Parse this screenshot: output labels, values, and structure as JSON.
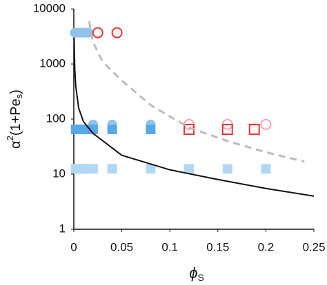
{
  "chart_data": {
    "type": "scatter",
    "xlabel": [
      "ϕ",
      "S"
    ],
    "ylabel": [
      "α",
      "2",
      "(1+Pe",
      "s",
      ")"
    ],
    "xlim": [
      0,
      0.25
    ],
    "xticks": [
      0,
      0.05,
      0.1,
      0.15,
      0.2,
      0.25
    ],
    "ylim": [
      1,
      10000
    ],
    "yticks": [
      1,
      10,
      100,
      1000,
      10000
    ],
    "ylog": true,
    "series": [
      {
        "marker": "circle",
        "filled": true,
        "color": "#8fc3ea",
        "x": [
          0.001,
          0.003,
          0.005,
          0.007,
          0.009,
          0.011,
          0.013,
          0.015
        ],
        "values": [
          3700,
          3700,
          3700,
          3700,
          3700,
          3700,
          3700,
          3700
        ]
      },
      {
        "marker": "circle",
        "filled": false,
        "color": "#e8312f",
        "x": [
          0.025,
          0.045
        ],
        "values": [
          3700,
          3700
        ]
      },
      {
        "marker": "circle",
        "filled": true,
        "color": "#8fc3ea",
        "x": [
          0.02,
          0.04,
          0.08
        ],
        "values": [
          80,
          80,
          80
        ]
      },
      {
        "marker": "circle",
        "filled": false,
        "color": "#f2a0c0",
        "x": [
          0.12,
          0.16,
          0.2
        ],
        "values": [
          80,
          80,
          80
        ]
      },
      {
        "marker": "square",
        "filled": true,
        "color": "#5aa7e8",
        "x": [
          0.002,
          0.005,
          0.008,
          0.011,
          0.02,
          0.04,
          0.08
        ],
        "values": [
          65,
          65,
          65,
          65,
          65,
          65,
          65
        ]
      },
      {
        "marker": "square",
        "filled": false,
        "color": "#e8312f",
        "x": [
          0.12,
          0.16,
          0.188
        ],
        "values": [
          65,
          65,
          65
        ]
      },
      {
        "marker": "square",
        "filled": true,
        "color": "#b0d8f5",
        "x": [
          0.002,
          0.005,
          0.008,
          0.011,
          0.02,
          0.04,
          0.08,
          0.12,
          0.16,
          0.2
        ],
        "values": [
          12.5,
          12.5,
          12.5,
          12.5,
          12.5,
          12.5,
          12.5,
          12.5,
          12.5,
          12.5
        ]
      },
      {
        "line": "solid",
        "color": "#111111",
        "x": [
          0.0003,
          0.001,
          0.002,
          0.005,
          0.01,
          0.02,
          0.05,
          0.1,
          0.15,
          0.2,
          0.25
        ],
        "values": [
          3000,
          800,
          400,
          160,
          90,
          55,
          22,
          12,
          8,
          5.5,
          4
        ]
      },
      {
        "line": "dashed",
        "color": "#bbbbbb",
        "x": [
          0.016,
          0.02,
          0.03,
          0.05,
          0.08,
          0.12,
          0.16,
          0.2,
          0.24
        ],
        "values": [
          6000,
          2500,
          1100,
          500,
          180,
          70,
          40,
          25,
          17
        ]
      }
    ]
  }
}
